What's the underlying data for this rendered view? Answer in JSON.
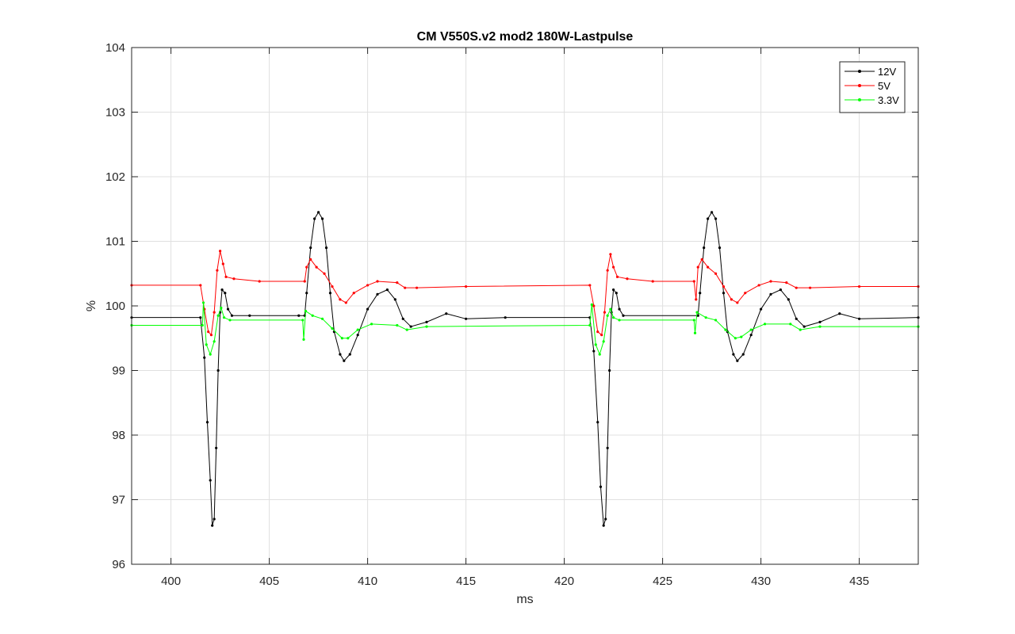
{
  "chart_data": {
    "type": "line",
    "title": "CM V550S.v2 mod2 180W-Lastpulse",
    "xlabel": "ms",
    "ylabel": "%",
    "xlim": [
      398,
      438
    ],
    "ylim": [
      96,
      104
    ],
    "xticks": [
      "400",
      "405",
      "410",
      "415",
      "420",
      "425",
      "430",
      "435"
    ],
    "yticks": [
      "96",
      "97",
      "98",
      "99",
      "100",
      "101",
      "102",
      "103",
      "104"
    ],
    "grid": true,
    "legend_position": "top-right",
    "series": [
      {
        "name": "12V",
        "color": "#000000",
        "points": [
          [
            398,
            99.82
          ],
          [
            401.5,
            99.82
          ],
          [
            401.7,
            99.2
          ],
          [
            401.85,
            98.2
          ],
          [
            402.0,
            97.3
          ],
          [
            402.1,
            96.6
          ],
          [
            402.2,
            96.7
          ],
          [
            402.3,
            97.8
          ],
          [
            402.4,
            99.0
          ],
          [
            402.5,
            99.9
          ],
          [
            402.6,
            100.25
          ],
          [
            402.75,
            100.2
          ],
          [
            402.9,
            99.95
          ],
          [
            403.1,
            99.85
          ],
          [
            404.0,
            99.85
          ],
          [
            406.5,
            99.85
          ],
          [
            406.8,
            99.85
          ],
          [
            406.9,
            100.2
          ],
          [
            407.1,
            100.9
          ],
          [
            407.3,
            101.35
          ],
          [
            407.5,
            101.45
          ],
          [
            407.7,
            101.35
          ],
          [
            407.9,
            100.9
          ],
          [
            408.1,
            100.2
          ],
          [
            408.3,
            99.6
          ],
          [
            408.6,
            99.25
          ],
          [
            408.8,
            99.15
          ],
          [
            409.1,
            99.25
          ],
          [
            409.5,
            99.55
          ],
          [
            410.0,
            99.95
          ],
          [
            410.5,
            100.18
          ],
          [
            411.0,
            100.25
          ],
          [
            411.4,
            100.1
          ],
          [
            411.8,
            99.8
          ],
          [
            412.2,
            99.68
          ],
          [
            413.0,
            99.75
          ],
          [
            414.0,
            99.88
          ],
          [
            415.0,
            99.8
          ],
          [
            417.0,
            99.82
          ],
          [
            421.3,
            99.82
          ],
          [
            421.5,
            99.3
          ],
          [
            421.7,
            98.2
          ],
          [
            421.85,
            97.2
          ],
          [
            422.0,
            96.6
          ],
          [
            422.1,
            96.7
          ],
          [
            422.2,
            97.8
          ],
          [
            422.3,
            99.0
          ],
          [
            422.4,
            99.9
          ],
          [
            422.5,
            100.25
          ],
          [
            422.65,
            100.2
          ],
          [
            422.8,
            99.95
          ],
          [
            423.0,
            99.85
          ],
          [
            426.8,
            99.85
          ],
          [
            426.9,
            100.2
          ],
          [
            427.1,
            100.9
          ],
          [
            427.3,
            101.35
          ],
          [
            427.5,
            101.45
          ],
          [
            427.7,
            101.35
          ],
          [
            427.9,
            100.9
          ],
          [
            428.1,
            100.2
          ],
          [
            428.3,
            99.6
          ],
          [
            428.6,
            99.25
          ],
          [
            428.8,
            99.15
          ],
          [
            429.1,
            99.25
          ],
          [
            429.5,
            99.55
          ],
          [
            430.0,
            99.95
          ],
          [
            430.5,
            100.18
          ],
          [
            431.0,
            100.25
          ],
          [
            431.4,
            100.1
          ],
          [
            431.8,
            99.8
          ],
          [
            432.2,
            99.68
          ],
          [
            433.0,
            99.75
          ],
          [
            434.0,
            99.88
          ],
          [
            435.0,
            99.8
          ],
          [
            438,
            99.82
          ]
        ]
      },
      {
        "name": "5V",
        "color": "#ff0000",
        "points": [
          [
            398,
            100.32
          ],
          [
            401.5,
            100.32
          ],
          [
            401.7,
            99.95
          ],
          [
            401.9,
            99.6
          ],
          [
            402.05,
            99.55
          ],
          [
            402.2,
            99.9
          ],
          [
            402.35,
            100.55
          ],
          [
            402.5,
            100.85
          ],
          [
            402.65,
            100.65
          ],
          [
            402.8,
            100.45
          ],
          [
            403.2,
            100.42
          ],
          [
            404.5,
            100.38
          ],
          [
            406.8,
            100.38
          ],
          [
            406.9,
            100.6
          ],
          [
            407.1,
            100.72
          ],
          [
            407.4,
            100.6
          ],
          [
            407.8,
            100.5
          ],
          [
            408.2,
            100.3
          ],
          [
            408.6,
            100.1
          ],
          [
            408.9,
            100.05
          ],
          [
            409.3,
            100.2
          ],
          [
            410.0,
            100.32
          ],
          [
            410.5,
            100.38
          ],
          [
            411.5,
            100.36
          ],
          [
            411.9,
            100.28
          ],
          [
            412.5,
            100.28
          ],
          [
            415.0,
            100.3
          ],
          [
            421.3,
            100.32
          ],
          [
            421.5,
            100.0
          ],
          [
            421.7,
            99.6
          ],
          [
            421.9,
            99.55
          ],
          [
            422.05,
            99.9
          ],
          [
            422.2,
            100.55
          ],
          [
            422.35,
            100.8
          ],
          [
            422.5,
            100.6
          ],
          [
            422.7,
            100.45
          ],
          [
            423.2,
            100.42
          ],
          [
            424.5,
            100.38
          ],
          [
            426.6,
            100.38
          ],
          [
            426.7,
            100.1
          ],
          [
            426.8,
            100.6
          ],
          [
            427.0,
            100.72
          ],
          [
            427.3,
            100.6
          ],
          [
            427.7,
            100.5
          ],
          [
            428.1,
            100.3
          ],
          [
            428.5,
            100.1
          ],
          [
            428.8,
            100.05
          ],
          [
            429.2,
            100.2
          ],
          [
            429.9,
            100.32
          ],
          [
            430.5,
            100.38
          ],
          [
            431.3,
            100.36
          ],
          [
            431.8,
            100.28
          ],
          [
            432.5,
            100.28
          ],
          [
            435.0,
            100.3
          ],
          [
            438,
            100.3
          ]
        ]
      },
      {
        "name": "3.3V",
        "color": "#00ff00",
        "points": [
          [
            398,
            99.7
          ],
          [
            401.6,
            99.7
          ],
          [
            401.65,
            100.05
          ],
          [
            401.8,
            99.4
          ],
          [
            402.0,
            99.25
          ],
          [
            402.2,
            99.45
          ],
          [
            402.4,
            99.85
          ],
          [
            402.55,
            99.97
          ],
          [
            402.7,
            99.82
          ],
          [
            403.0,
            99.78
          ],
          [
            406.7,
            99.78
          ],
          [
            406.75,
            99.48
          ],
          [
            406.85,
            99.92
          ],
          [
            407.2,
            99.85
          ],
          [
            407.7,
            99.8
          ],
          [
            408.2,
            99.65
          ],
          [
            408.7,
            99.5
          ],
          [
            409.0,
            99.5
          ],
          [
            409.5,
            99.63
          ],
          [
            410.2,
            99.72
          ],
          [
            411.5,
            99.7
          ],
          [
            412.0,
            99.63
          ],
          [
            413.0,
            99.68
          ],
          [
            421.3,
            99.7
          ],
          [
            421.4,
            100.02
          ],
          [
            421.6,
            99.4
          ],
          [
            421.8,
            99.25
          ],
          [
            422.0,
            99.45
          ],
          [
            422.2,
            99.85
          ],
          [
            422.35,
            99.95
          ],
          [
            422.5,
            99.82
          ],
          [
            422.8,
            99.78
          ],
          [
            426.6,
            99.78
          ],
          [
            426.65,
            99.58
          ],
          [
            426.75,
            99.9
          ],
          [
            427.2,
            99.82
          ],
          [
            427.7,
            99.78
          ],
          [
            428.2,
            99.63
          ],
          [
            428.7,
            99.5
          ],
          [
            429.0,
            99.52
          ],
          [
            429.5,
            99.63
          ],
          [
            430.2,
            99.72
          ],
          [
            431.5,
            99.72
          ],
          [
            432.0,
            99.63
          ],
          [
            433.0,
            99.68
          ],
          [
            438,
            99.68
          ]
        ]
      }
    ]
  }
}
